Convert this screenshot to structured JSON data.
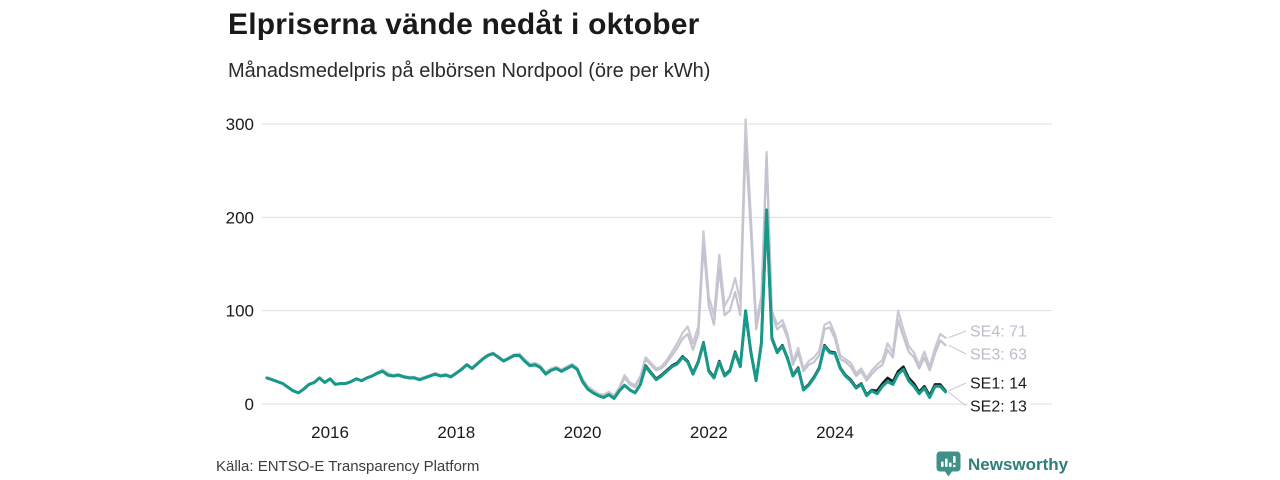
{
  "header": {
    "title": "Elpriserna vände nedåt i oktober",
    "subtitle": "Månadsmedelpris på elbörsen Nordpool (öre per kWh)"
  },
  "footer": {
    "source": "Källa: ENTSO-E Transparency Platform",
    "brand": "Newsworthy"
  },
  "colors": {
    "accent_teal": "#17998a",
    "dark_line": "#1a1a1a",
    "gray_line": "#c9c8d4",
    "gray_label": "#bdbccb",
    "grid": "#dedde3",
    "text": "#1a1a1a",
    "brand_teal": "#2f7f78",
    "logo_fill": "#3f9188"
  },
  "chart_data": {
    "type": "line",
    "title": "Elpriserna vände nedåt i oktober",
    "subtitle": "Månadsmedelpris på elbörsen Nordpool (öre per kWh)",
    "unit": "öre per kWh",
    "x_monthly_start": "2015-01",
    "x_monthly_end": "2025-10",
    "x_ticks": [
      2016,
      2018,
      2020,
      2022,
      2024
    ],
    "y_ticks": [
      0,
      100,
      200,
      300
    ],
    "ylim": [
      0,
      310
    ],
    "grid": true,
    "legend_position": "end-of-line-labels",
    "series": [
      {
        "name": "SE4",
        "color": "#c9c8d4",
        "width": 2.2,
        "label": "SE4: 71",
        "label_color": "#bdbccb",
        "last_value": 71,
        "values": [
          28,
          26,
          24,
          22,
          18,
          14,
          12,
          16,
          21,
          23,
          28,
          23,
          27,
          21,
          22,
          22,
          24,
          27,
          25,
          28,
          30,
          34,
          37,
          33,
          31,
          32,
          30,
          29,
          29,
          27,
          29,
          31,
          33,
          31,
          32,
          30,
          34,
          38,
          43,
          39,
          44,
          49,
          53,
          55,
          51,
          47,
          50,
          53,
          54,
          48,
          43,
          44,
          41,
          34,
          38,
          40,
          37,
          40,
          43,
          39,
          27,
          19,
          15,
          11,
          10,
          13,
          9,
          18,
          31,
          23,
          20,
          30,
          50,
          44,
          38,
          40,
          47,
          56,
          65,
          76,
          83,
          65,
          83,
          185,
          115,
          95,
          160,
          105,
          115,
          135,
          110,
          305,
          200,
          90,
          115,
          270,
          100,
          85,
          90,
          75,
          46,
          60,
          38,
          46,
          50,
          57,
          85,
          88,
          75,
          52,
          48,
          44,
          33,
          38,
          28,
          36,
          42,
          47,
          65,
          55,
          100,
          80,
          62,
          55,
          42,
          56,
          40,
          60,
          75,
          71
        ]
      },
      {
        "name": "SE3",
        "color": "#c4c3d0",
        "width": 2.2,
        "label": "SE3: 63",
        "label_color": "#bdbccb",
        "last_value": 63,
        "values": [
          28,
          26,
          24,
          22,
          18,
          14,
          12,
          16,
          21,
          23,
          28,
          23,
          27,
          21,
          22,
          22,
          24,
          27,
          25,
          28,
          30,
          33,
          36,
          32,
          30,
          31,
          29,
          28,
          28,
          26,
          28,
          30,
          32,
          30,
          31,
          29,
          33,
          37,
          42,
          38,
          43,
          48,
          52,
          54,
          50,
          46,
          49,
          52,
          53,
          47,
          42,
          43,
          40,
          33,
          37,
          39,
          36,
          39,
          42,
          38,
          26,
          18,
          14,
          10,
          9,
          12,
          8,
          16,
          28,
          21,
          18,
          28,
          48,
          42,
          36,
          38,
          44,
          52,
          60,
          70,
          75,
          58,
          75,
          170,
          105,
          85,
          145,
          95,
          100,
          120,
          95,
          280,
          185,
          80,
          110,
          265,
          95,
          80,
          85,
          70,
          42,
          55,
          35,
          42,
          45,
          52,
          80,
          82,
          70,
          48,
          45,
          40,
          30,
          35,
          25,
          32,
          38,
          42,
          58,
          50,
          90,
          72,
          56,
          50,
          38,
          50,
          36,
          54,
          68,
          63
        ]
      },
      {
        "name": "SE1",
        "color": "#1a1a1a",
        "width": 2.6,
        "label": "SE1: 14",
        "label_color": "#1a1a1a",
        "last_value": 14,
        "values": [
          28,
          26,
          24,
          22,
          18,
          14,
          12,
          16,
          21,
          23,
          28,
          23,
          27,
          21,
          22,
          22,
          24,
          27,
          25,
          28,
          30,
          33,
          35,
          31,
          30,
          31,
          29,
          28,
          28,
          26,
          28,
          30,
          32,
          30,
          31,
          29,
          33,
          37,
          42,
          38,
          43,
          48,
          52,
          54,
          50,
          46,
          49,
          52,
          52,
          46,
          41,
          42,
          39,
          32,
          36,
          38,
          35,
          38,
          41,
          37,
          24,
          16,
          12,
          9,
          7,
          10,
          6,
          14,
          20,
          15,
          12,
          21,
          41,
          34,
          27,
          31,
          36,
          41,
          44,
          51,
          46,
          33,
          46,
          66,
          36,
          29,
          46,
          31,
          36,
          56,
          41,
          96,
          56,
          26,
          66,
          205,
          71,
          56,
          63,
          49,
          31,
          39,
          16,
          21,
          29,
          39,
          63,
          56,
          55,
          39,
          31,
          26,
          18,
          22,
          10,
          15,
          14,
          22,
          28,
          24,
          35,
          40,
          28,
          22,
          13,
          19,
          9,
          21,
          21,
          14
        ]
      },
      {
        "name": "SE2",
        "color": "#17998a",
        "width": 3,
        "label": "SE2: 13",
        "label_color": "#1a1a1a",
        "last_value": 13,
        "values": [
          28,
          26,
          24,
          22,
          18,
          14,
          12,
          16,
          21,
          23,
          28,
          23,
          27,
          21,
          22,
          22,
          24,
          27,
          25,
          28,
          30,
          33,
          35,
          31,
          30,
          31,
          29,
          28,
          28,
          26,
          28,
          30,
          32,
          30,
          31,
          29,
          33,
          37,
          42,
          38,
          43,
          48,
          52,
          54,
          50,
          46,
          49,
          52,
          52,
          46,
          41,
          42,
          39,
          32,
          36,
          38,
          35,
          38,
          41,
          37,
          24,
          16,
          12,
          9,
          7,
          10,
          6,
          14,
          20,
          15,
          12,
          21,
          40,
          33,
          26,
          30,
          35,
          40,
          43,
          50,
          45,
          32,
          45,
          65,
          35,
          28,
          45,
          30,
          35,
          55,
          40,
          100,
          55,
          25,
          65,
          208,
          70,
          55,
          62,
          48,
          30,
          38,
          15,
          20,
          28,
          38,
          62,
          55,
          54,
          38,
          30,
          25,
          17,
          21,
          9,
          14,
          11,
          19,
          24,
          21,
          32,
          37,
          25,
          19,
          11,
          17,
          7,
          19,
          19,
          13
        ]
      }
    ]
  }
}
